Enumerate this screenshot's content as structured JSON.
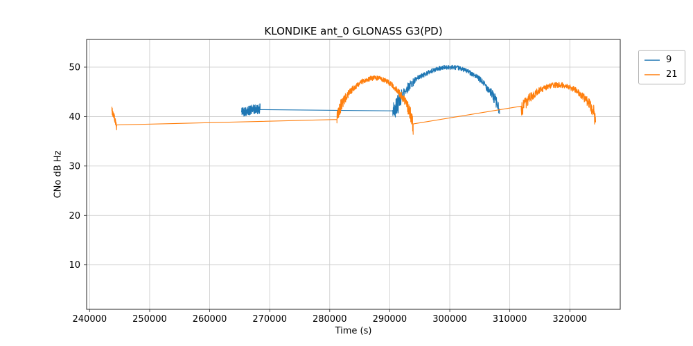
{
  "chart_data": {
    "type": "line",
    "title": "KLONDIKE ant_0 GLONASS G3(PD)",
    "xlabel": "Time (s)",
    "ylabel": "CNo dB Hz",
    "xlim": [
      239500,
      328400
    ],
    "ylim": [
      1.0,
      55.6
    ],
    "x_ticks": [
      240000,
      250000,
      260000,
      270000,
      280000,
      290000,
      300000,
      310000,
      320000
    ],
    "x_tick_labels": [
      "240000",
      "250000",
      "260000",
      "270000",
      "280000",
      "290000",
      "300000",
      "310000",
      "320000"
    ],
    "y_ticks": [
      10,
      20,
      30,
      40,
      50
    ],
    "y_tick_labels": [
      "10",
      "20",
      "30",
      "40",
      "50"
    ],
    "grid": true,
    "grid_color": "#c9c9c9",
    "spine_color": "#262626",
    "legend_position": "outside-right",
    "series": [
      {
        "name": "9",
        "color": "#1f77b4",
        "segments": [
          {
            "type": "noisy",
            "x0": 265300,
            "x1": 268400,
            "y0": 41.0,
            "y1": 41.6,
            "noise": 1.0,
            "n": 140
          },
          {
            "type": "line",
            "x0": 268400,
            "x1": 290500,
            "y0": 41.4,
            "y1": 41.15,
            "noise": 0,
            "n": 2
          },
          {
            "type": "noisy",
            "x0": 290500,
            "x1": 291700,
            "y0": 41.0,
            "y1": 43.0,
            "noise": 2.0,
            "n": 70
          },
          {
            "type": "arc",
            "x0": 291700,
            "x1": 308300,
            "y_start": 43.0,
            "y_end": 40.3,
            "peak": 50.0,
            "noise": 0.45,
            "n": 520
          }
        ]
      },
      {
        "name": "21",
        "color": "#ff7f0e",
        "segments": [
          {
            "type": "noisy",
            "x0": 243700,
            "x1": 244500,
            "y0": 41.5,
            "y1": 38.0,
            "noise": 0.8,
            "n": 50
          },
          {
            "type": "line",
            "x0": 244500,
            "x1": 281200,
            "y0": 38.3,
            "y1": 39.4,
            "noise": 0,
            "n": 2
          },
          {
            "type": "arc",
            "x0": 281200,
            "x1": 293900,
            "y_start": 39.4,
            "y_end": 37.7,
            "peak": 47.8,
            "noise": 0.5,
            "n": 480
          },
          {
            "type": "line",
            "x0": 293900,
            "x1": 311900,
            "y0": 38.5,
            "y1": 42.1,
            "noise": 0,
            "n": 2
          },
          {
            "type": "arc",
            "x0": 311900,
            "x1": 324300,
            "y_start": 41.0,
            "y_end": 39.0,
            "peak": 46.4,
            "noise": 0.55,
            "n": 420
          }
        ]
      }
    ]
  }
}
